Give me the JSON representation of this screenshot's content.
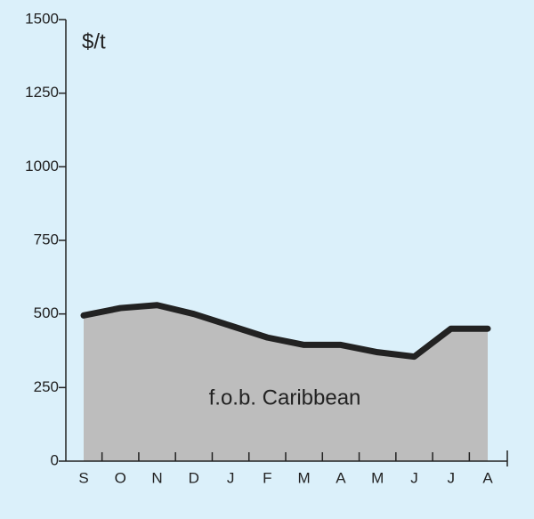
{
  "chart_data": {
    "type": "area",
    "unit_label": "$/t",
    "annotation": "f.o.b. Caribbean",
    "categories": [
      "S",
      "O",
      "N",
      "D",
      "J",
      "F",
      "M",
      "A",
      "M",
      "J",
      "J",
      "A"
    ],
    "values": [
      495,
      520,
      530,
      500,
      460,
      420,
      395,
      395,
      370,
      355,
      450,
      450
    ],
    "color": "#222222",
    "fill": "#bdbdbd",
    "ylim": [
      0,
      1500
    ],
    "yticks": [
      0,
      250,
      500,
      750,
      1000,
      1250,
      1500
    ]
  }
}
